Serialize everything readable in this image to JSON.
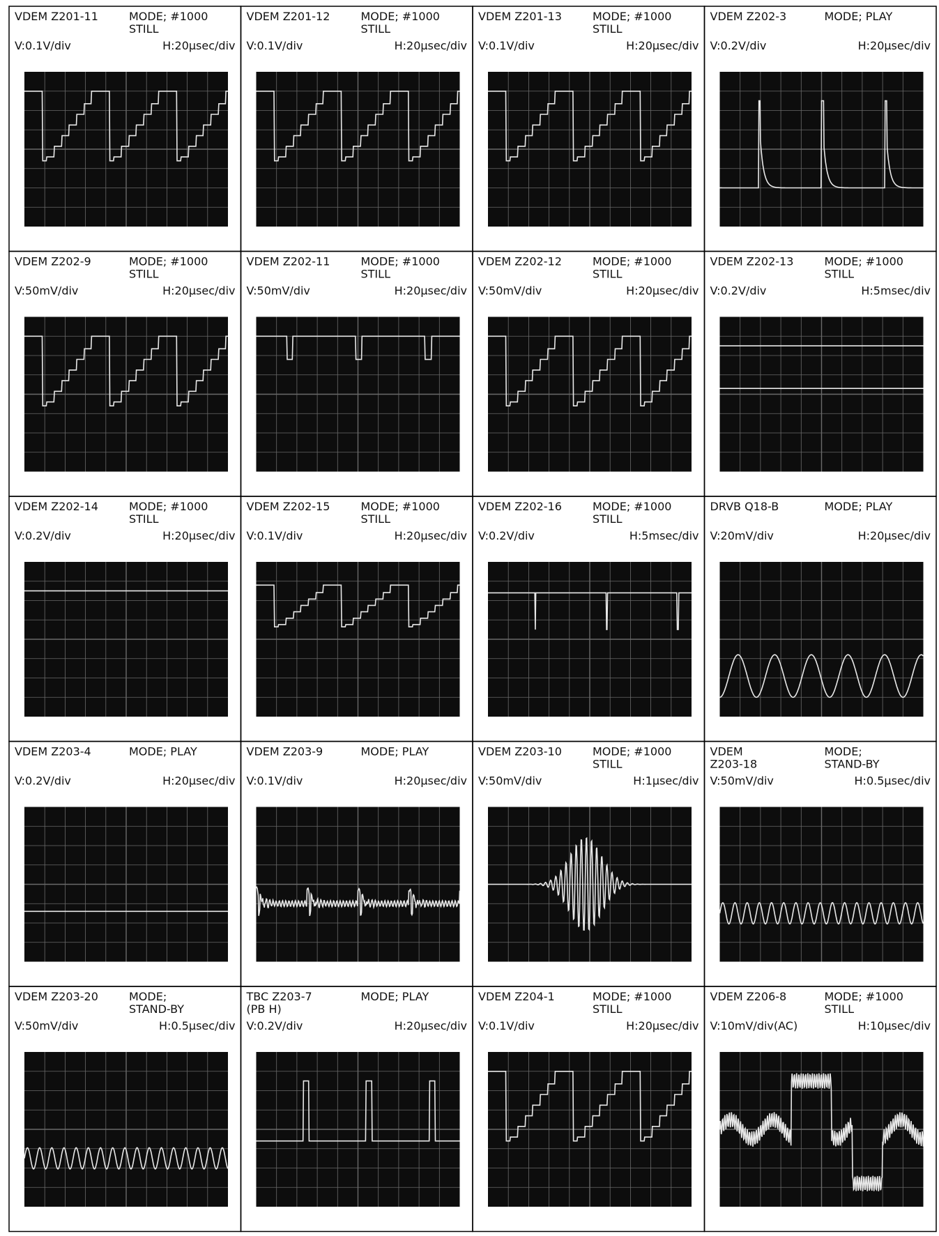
{
  "panels": [
    {
      "id": [
        "VDEM Z201-11"
      ],
      "mode": [
        "MODE; #1000",
        "STILL"
      ],
      "v": "V:0.1V/div",
      "h": "H:20μsec/div"
    },
    {
      "id": [
        "VDEM Z201-12"
      ],
      "mode": [
        "MODE; #1000",
        "STILL"
      ],
      "v": "V:0.1V/div",
      "h": "H:20μsec/div"
    },
    {
      "id": [
        "VDEM Z201-13"
      ],
      "mode": [
        "MODE; #1000",
        "STILL"
      ],
      "v": "V:0.1V/div",
      "h": "H:20μsec/div"
    },
    {
      "id": [
        "VDEM Z202-3"
      ],
      "mode": [
        "MODE; PLAY"
      ],
      "v": "V:0.2V/div",
      "h": "H:20μsec/div"
    },
    {
      "id": [
        "VDEM Z202-9"
      ],
      "mode": [
        "MODE; #1000",
        "STILL"
      ],
      "v": "V:50mV/div",
      "h": "H:20μsec/div"
    },
    {
      "id": [
        "VDEM Z202-11"
      ],
      "mode": [
        "MODE; #1000",
        "STILL"
      ],
      "v": "V:50mV/div",
      "h": "H:20μsec/div"
    },
    {
      "id": [
        "VDEM Z202-12"
      ],
      "mode": [
        "MODE; #1000",
        "STILL"
      ],
      "v": "V:50mV/div",
      "h": "H:20μsec/div"
    },
    {
      "id": [
        "VDEM Z202-13"
      ],
      "mode": [
        "MODE; #1000",
        "STILL"
      ],
      "v": "V:0.2V/div",
      "h": "H:5msec/div"
    },
    {
      "id": [
        "VDEM Z202-14"
      ],
      "mode": [
        "MODE; #1000",
        "STILL"
      ],
      "v": "V:0.2V/div",
      "h": "H:20μsec/div"
    },
    {
      "id": [
        "VDEM Z202-15"
      ],
      "mode": [
        "MODE; #1000",
        "STILL"
      ],
      "v": "V:0.1V/div",
      "h": "H:20μsec/div"
    },
    {
      "id": [
        "VDEM Z202-16"
      ],
      "mode": [
        "MODE; #1000",
        "STILL"
      ],
      "v": "V:0.2V/div",
      "h": "H:5msec/div"
    },
    {
      "id": [
        "DRVB Q18-B"
      ],
      "mode": [
        "MODE; PLAY"
      ],
      "v": "V:20mV/div",
      "h": "H:20μsec/div"
    },
    {
      "id": [
        "VDEM Z203-4"
      ],
      "mode": [
        "MODE; PLAY"
      ],
      "v": "V:0.2V/div",
      "h": "H:20μsec/div"
    },
    {
      "id": [
        "VDEM Z203-9"
      ],
      "mode": [
        "MODE; PLAY"
      ],
      "v": "V:0.1V/div",
      "h": "H:20μsec/div"
    },
    {
      "id": [
        "VDEM Z203-10"
      ],
      "mode": [
        "MODE; #1000",
        "STILL"
      ],
      "v": "V:50mV/div",
      "h": "H:1μsec/div"
    },
    {
      "id": [
        "VDEM",
        "Z203-18"
      ],
      "mode": [
        "MODE;",
        "STAND-BY"
      ],
      "v": "V:50mV/div",
      "h": "H:0.5μsec/div"
    },
    {
      "id": [
        "VDEM Z203-20"
      ],
      "mode": [
        "MODE;",
        "STAND-BY"
      ],
      "v": "V:50mV/div",
      "h": "H:0.5μsec/div"
    },
    {
      "id": [
        "TBC Z203-7",
        "(PB H)"
      ],
      "mode": [
        "MODE; PLAY"
      ],
      "v": "V:0.2V/div",
      "h": "H:20μsec/div"
    },
    {
      "id": [
        "VDEM Z204-1"
      ],
      "mode": [
        "MODE; #1000",
        "STILL"
      ],
      "v": "V:0.1V/div",
      "h": "H:20μsec/div"
    },
    {
      "id": [
        "VDEM Z206-8"
      ],
      "mode": [
        "MODE; #1000",
        "STILL"
      ],
      "v": "V:10mV/div(AC)",
      "h": "H:10μsec/div"
    }
  ]
}
